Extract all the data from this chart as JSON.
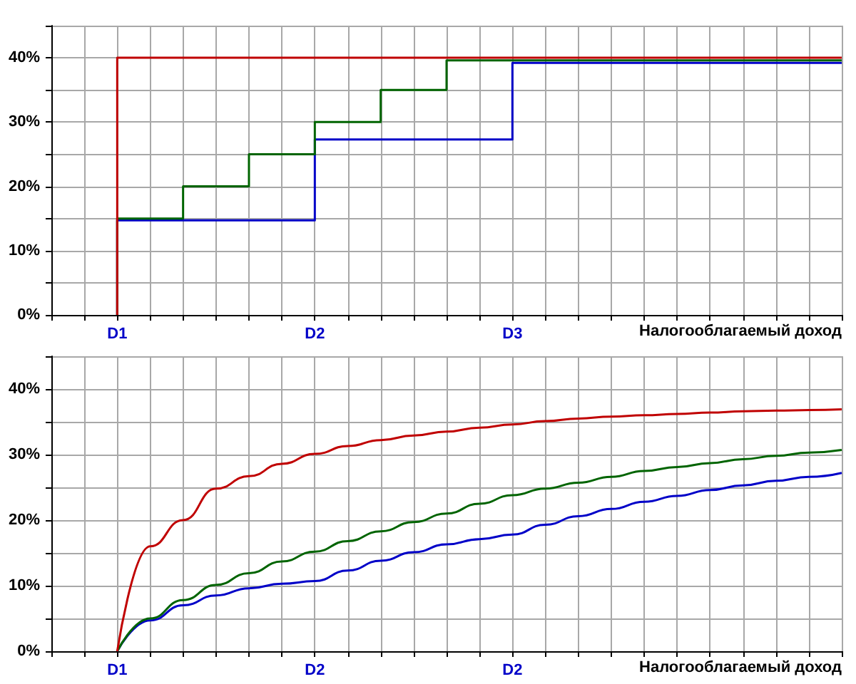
{
  "chart_data": [
    {
      "type": "step",
      "xlabel": "Налогооблагаемый доход",
      "ylim": [
        0,
        45
      ],
      "categories": [
        null,
        null,
        "D1",
        null,
        null,
        null,
        null,
        null,
        "D2",
        null,
        null,
        null,
        null,
        null,
        "D3",
        null,
        null,
        null,
        null,
        null,
        null,
        null,
        null,
        null,
        null
      ],
      "yticks": [
        {
          "value": 0,
          "label": "0%"
        },
        {
          "value": 5,
          "label": null
        },
        {
          "value": 10,
          "label": "10%"
        },
        {
          "value": 15,
          "label": null
        },
        {
          "value": 20,
          "label": "20%"
        },
        {
          "value": 25,
          "label": null
        },
        {
          "value": 30,
          "label": "30%"
        },
        {
          "value": 35,
          "label": null
        },
        {
          "value": 40,
          "label": "40%"
        },
        {
          "value": 45,
          "label": null
        }
      ],
      "grid": true,
      "series": [
        {
          "color": "#c00000",
          "values": [
            null,
            null,
            0,
            40,
            40,
            40,
            40,
            40,
            40,
            40,
            40,
            40,
            40,
            40,
            40,
            40,
            40,
            40,
            40,
            40,
            40,
            40,
            40,
            40,
            40
          ]
        },
        {
          "color": "#006400",
          "values": [
            null,
            null,
            0,
            15,
            15,
            20,
            20,
            25,
            25,
            30,
            30,
            35,
            35,
            39.6,
            39.6,
            39.6,
            39.6,
            39.6,
            39.6,
            39.6,
            39.6,
            39.6,
            39.6,
            39.6,
            39.6
          ]
        },
        {
          "color": "#0000c8",
          "values": [
            null,
            null,
            0,
            14.7,
            14.7,
            14.7,
            14.7,
            14.7,
            14.7,
            27.3,
            27.3,
            27.3,
            27.3,
            27.3,
            27.3,
            39.2,
            39.2,
            39.2,
            39.2,
            39.2,
            39.2,
            39.2,
            39.2,
            39.2,
            39.2
          ]
        }
      ]
    },
    {
      "type": "line",
      "xlabel": "Налогооблагаемый доход",
      "ylim": [
        0,
        45
      ],
      "categories": [
        null,
        null,
        "D1",
        null,
        null,
        null,
        null,
        null,
        "D2",
        null,
        null,
        null,
        null,
        null,
        "D2",
        null,
        null,
        null,
        null,
        null,
        null,
        null,
        null,
        null,
        null
      ],
      "yticks": [
        {
          "value": 0,
          "label": "0%"
        },
        {
          "value": 5,
          "label": null
        },
        {
          "value": 10,
          "label": "10%"
        },
        {
          "value": 15,
          "label": null
        },
        {
          "value": 20,
          "label": "20%"
        },
        {
          "value": 25,
          "label": null
        },
        {
          "value": 30,
          "label": "30%"
        },
        {
          "value": 35,
          "label": null
        },
        {
          "value": 40,
          "label": "40%"
        },
        {
          "value": 45,
          "label": null
        }
      ],
      "grid": true,
      "series": [
        {
          "color": "#c00000",
          "values": [
            null,
            null,
            0,
            16,
            20,
            24.8,
            26.7,
            28.6,
            30.1,
            31.3,
            32.2,
            32.9,
            33.5,
            34.1,
            34.6,
            35.1,
            35.5,
            35.8,
            36,
            36.2,
            36.4,
            36.6,
            36.7,
            36.8,
            36.9
          ]
        },
        {
          "color": "#006400",
          "values": [
            null,
            null,
            0,
            5,
            7.8,
            10.1,
            11.9,
            13.7,
            15.2,
            16.8,
            18.3,
            19.7,
            21,
            22.5,
            23.8,
            24.8,
            25.7,
            26.6,
            27.5,
            28.1,
            28.7,
            29.3,
            29.8,
            30.3,
            30.7
          ]
        },
        {
          "color": "#0000c8",
          "values": [
            null,
            null,
            0,
            4.7,
            7,
            8.5,
            9.6,
            10.3,
            10.7,
            12.3,
            13.8,
            15.1,
            16.3,
            17.1,
            17.8,
            19.3,
            20.6,
            21.7,
            22.8,
            23.7,
            24.6,
            25.3,
            26,
            26.6,
            27.2
          ]
        }
      ]
    }
  ]
}
